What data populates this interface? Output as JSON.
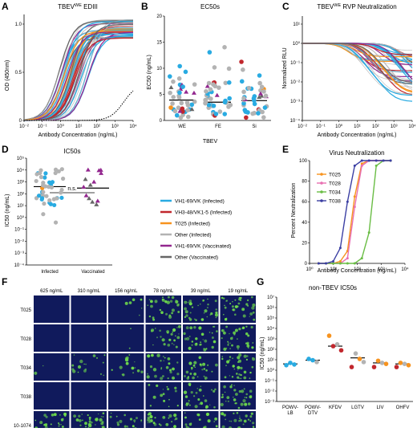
{
  "colors": {
    "vh169_inf": "#29abe2",
    "vh348_inf": "#c1272d",
    "t025_inf": "#f7931e",
    "other_inf": "#b3b3b3",
    "vh169_vac": "#93278f",
    "other_vac": "#666666",
    "t025": "#f7931e",
    "t028": "#e86fb1",
    "t034": "#6abd45",
    "t038": "#3b3fa3"
  },
  "panel_labels": [
    "A",
    "B",
    "C",
    "D",
    "E",
    "F",
    "G"
  ],
  "legend": [
    {
      "label": "VH1-69/VK (Infected)",
      "color_key": "vh169_inf"
    },
    {
      "label": "VH3-48/VK1-5 (Infected)",
      "color_key": "vh348_inf"
    },
    {
      "label": "T025 (Infected)",
      "color_key": "t025_inf"
    },
    {
      "label": "Other (Infected)",
      "color_key": "other_inf"
    },
    {
      "label": "VH1-69/VK (Vaccinated)",
      "color_key": "vh169_vac"
    },
    {
      "label": "Other (Vaccinated)",
      "color_key": "other_vac"
    }
  ],
  "chart_data": [
    {
      "id": "A",
      "type": "line",
      "title": "TBEV^WE EDIII",
      "title_main": "TBEV",
      "title_sup": "WE",
      "title_tail": " EDIII",
      "xlabel": "Antibody Concentration (ng/mL)",
      "ylabel": "OD (450nm)",
      "xscale": "log",
      "xlim": [
        0.01,
        10000
      ],
      "ylim": [
        0,
        1.1
      ],
      "xticks": [
        "10⁻²",
        "10⁻¹",
        "10⁰",
        "10¹",
        "10²",
        "10³",
        "10⁴"
      ],
      "yticks": [
        "0",
        "0.5",
        "1.0"
      ],
      "series_desc": "sigmoidal binding curves; max OD ~0.9-1.05; EC50 ~1-30 ng/mL; dotted line = negative control"
    },
    {
      "id": "B",
      "type": "scatter",
      "title": "EC50s",
      "xlabel": "TBEV",
      "ylabel": "EC50 (ng/mL)",
      "ylim": [
        0,
        20
      ],
      "categories": [
        "WE",
        "FE",
        "Si"
      ],
      "yticks": [
        "0",
        "5",
        "10",
        "15",
        "20"
      ],
      "medians": [
        3.9,
        3.5,
        3.8
      ]
    },
    {
      "id": "C",
      "type": "line",
      "title": "TBEV^WE RVP Neutralization",
      "title_main": "TBEV",
      "title_sup": "WE",
      "title_tail": " RVP Neutralization",
      "xlabel": "Antibody Concentration (ng/mL)",
      "ylabel": "Normalized RLU",
      "xscale": "log",
      "yscale": "log",
      "xlim": [
        0.01,
        10000
      ],
      "ylim": [
        0.0001,
        10
      ],
      "xticks": [
        "10⁻²",
        "10⁻¹",
        "10⁰",
        "10¹",
        "10²",
        "10³",
        "10⁴"
      ],
      "yticks": [
        "10¹",
        "10⁰",
        "10⁻¹",
        "10⁻²",
        "10⁻³",
        "10⁻⁴"
      ]
    },
    {
      "id": "D",
      "type": "scatter",
      "title": "IC50s",
      "ylabel": "IC50 (ng/mL)",
      "yscale": "log",
      "ylim": [
        0.0001,
        100000
      ],
      "categories": [
        "Infected",
        "Vaccinated"
      ],
      "yticks": [
        "10⁵",
        "10⁴",
        "10³",
        "10²",
        "10¹",
        "10⁰",
        "10⁻¹",
        "10⁻²",
        "10⁻³",
        "10⁻⁴"
      ],
      "medians": [
        400,
        300
      ],
      "annotation": "n.s."
    },
    {
      "id": "E",
      "type": "line",
      "title": "Virus Neutralization",
      "xlabel": "Antibody Concentration (ng/mL)",
      "ylabel": "Percent Neutralization",
      "xscale": "log",
      "xlim": [
        1,
        10000
      ],
      "ylim": [
        0,
        100
      ],
      "xticks": [
        "10⁰",
        "10¹",
        "10²",
        "10³",
        "10⁴"
      ],
      "yticks": [
        "0",
        "20",
        "40",
        "60",
        "80",
        "100"
      ],
      "series": [
        {
          "name": "T025",
          "color_key": "t025",
          "ic50": 60,
          "x": [
            2.4,
            4.9,
            9.8,
            19.5,
            39,
            78,
            156,
            312,
            625,
            1250,
            2500
          ],
          "y": [
            0,
            0,
            0,
            2,
            12,
            65,
            97,
            100,
            100,
            100,
            100
          ]
        },
        {
          "name": "T028",
          "color_key": "t028",
          "ic50": 70,
          "x": [
            2.4,
            4.9,
            9.8,
            19.5,
            39,
            78,
            156,
            312,
            625,
            1250,
            2500
          ],
          "y": [
            0,
            0,
            0,
            0,
            5,
            55,
            95,
            100,
            100,
            100,
            100
          ]
        },
        {
          "name": "T034",
          "color_key": "t034",
          "ic50": 400,
          "x": [
            2.4,
            4.9,
            9.8,
            19.5,
            39,
            78,
            156,
            312,
            625,
            1250,
            2500
          ],
          "y": [
            0,
            0,
            0,
            0,
            0,
            0,
            5,
            30,
            95,
            100,
            100
          ]
        },
        {
          "name": "T038",
          "color_key": "t038",
          "ic50": 30,
          "x": [
            2.4,
            4.9,
            9.8,
            19.5,
            39,
            78,
            156,
            312,
            625,
            1250,
            2500
          ],
          "y": [
            0,
            0,
            2,
            15,
            60,
            95,
            100,
            100,
            100,
            100,
            100
          ]
        }
      ]
    },
    {
      "id": "G",
      "type": "scatter",
      "title": "non-TBEV IC50s",
      "ylabel": "IC50 (ng/mL)",
      "yscale": "log",
      "ylim": [
        0.001,
        10000000
      ],
      "yticks": [
        "10⁷",
        "10⁶",
        "10⁵",
        "10⁴",
        "10³",
        "10²",
        "10¹",
        "10⁰",
        "10⁻¹",
        "10⁻²",
        "10⁻³"
      ],
      "categories": [
        "POWV-\nLB",
        "POWV-\nDTV",
        "KFDV",
        "LGTV",
        "LIV",
        "OHFV"
      ],
      "medians": [
        4,
        9,
        200,
        15,
        5,
        4
      ]
    }
  ],
  "panel_F": {
    "concentrations": [
      "625 ng/mL",
      "310 ng/mL",
      "156 ng/mL",
      "78 ng/mL",
      "39 ng/mL",
      "19 ng/mL"
    ],
    "rows": [
      "T025",
      "T028",
      "T034",
      "T038",
      "10-1074"
    ]
  }
}
